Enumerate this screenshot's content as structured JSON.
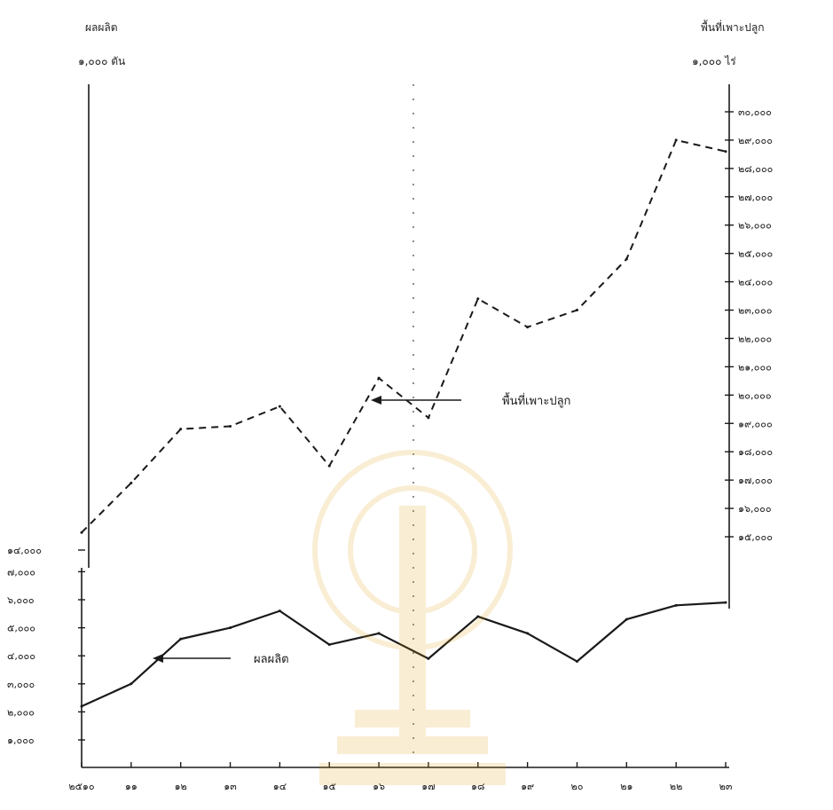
{
  "chart_data": {
    "type": "line",
    "title": "",
    "left_axis": {
      "title": "ผลผลิต",
      "unit": "๑,๐๐๐ ตัน",
      "tick_labels": [
        "๑,๐๐๐",
        "๒,๐๐๐",
        "๓,๐๐๐",
        "๔,๐๐๐",
        "๕,๐๐๐",
        "๖,๐๐๐",
        "๗,๐๐๐",
        "๑๔,๐๐๐"
      ],
      "tick_values": [
        1000,
        2000,
        3000,
        4000,
        5000,
        6000,
        7000,
        14000
      ]
    },
    "right_axis": {
      "title": "พื้นที่เพาะปลูก",
      "unit": "๑,๐๐๐ ไร่",
      "tick_labels": [
        "๑๕,๐๐๐",
        "๑๖,๐๐๐",
        "๑๗,๐๐๐",
        "๑๘,๐๐๐",
        "๑๙,๐๐๐",
        "๒๐,๐๐๐",
        "๒๑,๐๐๐",
        "๒๒,๐๐๐",
        "๒๓,๐๐๐",
        "๒๔,๐๐๐",
        "๒๕,๐๐๐",
        "๒๖,๐๐๐",
        "๒๗,๐๐๐",
        "๒๘,๐๐๐",
        "๒๙,๐๐๐",
        "๓๐,๐๐๐"
      ],
      "tick_values": [
        15000,
        16000,
        17000,
        18000,
        19000,
        20000,
        21000,
        22000,
        23000,
        24000,
        25000,
        26000,
        27000,
        28000,
        29000,
        30000
      ]
    },
    "x_tick_labels": [
      "๒๕๑๐",
      "๑๑",
      "๑๒",
      "๑๓",
      "๑๔",
      "๑๕",
      "๑๖",
      "๑๗",
      "๑๘",
      "๑๙",
      "๒๐",
      "๒๑",
      "๒๒",
      "๒๓"
    ],
    "series": [
      {
        "name": "พื้นที่เพาะปลูก",
        "style": "dashed",
        "axis": "right",
        "values": [
          15150,
          16900,
          18800,
          18900,
          19600,
          17500,
          20600,
          19200,
          23400,
          22400,
          23000,
          24800,
          29000,
          28600
        ],
        "annotation": "พื้นที่เพาะปลูก"
      },
      {
        "name": "ผลผลิต",
        "style": "solid",
        "axis": "left",
        "values": [
          2200,
          3000,
          4600,
          5000,
          5600,
          4400,
          4800,
          3900,
          5400,
          4800,
          3800,
          5300,
          5800,
          5900
        ],
        "annotation": "ผลผลิต"
      }
    ],
    "colors": {
      "line": "#1a1a1a",
      "axis": "#1a1a1a",
      "background": "#ffffff"
    }
  }
}
